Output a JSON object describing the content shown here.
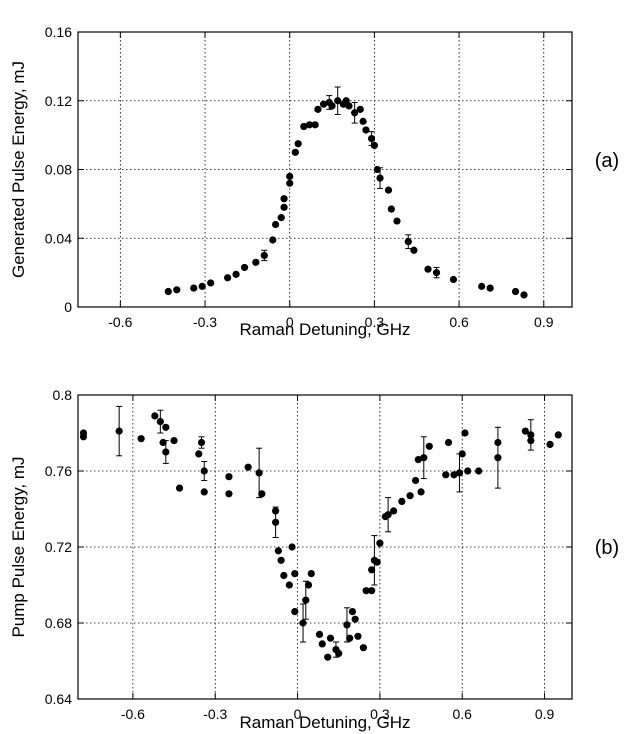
{
  "chart_data": [
    {
      "id": "a",
      "type": "scatter",
      "panel_label": "(a)",
      "xlabel": "Raman Detuning, GHz",
      "ylabel": "Generated Pulse Energy, mJ",
      "xlim": [
        -0.75,
        1.0
      ],
      "ylim": [
        0,
        0.16
      ],
      "xticks": [
        -0.6,
        -0.3,
        0,
        0.3,
        0.6,
        0.9
      ],
      "xtick_labels": [
        "-0.6",
        "-0.3",
        "0",
        "0.3",
        "0.6",
        "0.9"
      ],
      "yticks": [
        0,
        0.04,
        0.08,
        0.12,
        0.16
      ],
      "ytick_labels": [
        "0",
        "0.04",
        "0.08",
        "0.12",
        "0.16"
      ],
      "grid": true,
      "series": [
        {
          "points": [
            {
              "x": -0.43,
              "y": 0.009
            },
            {
              "x": -0.4,
              "y": 0.01
            },
            {
              "x": -0.34,
              "y": 0.011
            },
            {
              "x": -0.31,
              "y": 0.012
            },
            {
              "x": -0.28,
              "y": 0.014
            },
            {
              "x": -0.22,
              "y": 0.017
            },
            {
              "x": -0.19,
              "y": 0.019
            },
            {
              "x": -0.16,
              "y": 0.023
            },
            {
              "x": -0.12,
              "y": 0.026
            },
            {
              "x": -0.09,
              "y": 0.03,
              "err": 0.003
            },
            {
              "x": -0.06,
              "y": 0.039
            },
            {
              "x": -0.05,
              "y": 0.048
            },
            {
              "x": -0.03,
              "y": 0.052
            },
            {
              "x": -0.02,
              "y": 0.058
            },
            {
              "x": -0.02,
              "y": 0.063
            },
            {
              "x": 0.0,
              "y": 0.072
            },
            {
              "x": 0.0,
              "y": 0.076
            },
            {
              "x": 0.02,
              "y": 0.09
            },
            {
              "x": 0.03,
              "y": 0.095
            },
            {
              "x": 0.05,
              "y": 0.105
            },
            {
              "x": 0.07,
              "y": 0.106
            },
            {
              "x": 0.09,
              "y": 0.106
            },
            {
              "x": 0.1,
              "y": 0.115
            },
            {
              "x": 0.12,
              "y": 0.118
            },
            {
              "x": 0.14,
              "y": 0.119,
              "err": 0.004
            },
            {
              "x": 0.15,
              "y": 0.117
            },
            {
              "x": 0.17,
              "y": 0.12,
              "err": 0.008
            },
            {
              "x": 0.19,
              "y": 0.118
            },
            {
              "x": 0.2,
              "y": 0.12
            },
            {
              "x": 0.21,
              "y": 0.117
            },
            {
              "x": 0.23,
              "y": 0.113,
              "err": 0.006
            },
            {
              "x": 0.25,
              "y": 0.115
            },
            {
              "x": 0.26,
              "y": 0.108
            },
            {
              "x": 0.27,
              "y": 0.103
            },
            {
              "x": 0.29,
              "y": 0.098,
              "err": 0.004
            },
            {
              "x": 0.3,
              "y": 0.094
            },
            {
              "x": 0.31,
              "y": 0.08
            },
            {
              "x": 0.32,
              "y": 0.075,
              "err": 0.006
            },
            {
              "x": 0.35,
              "y": 0.068
            },
            {
              "x": 0.36,
              "y": 0.057
            },
            {
              "x": 0.38,
              "y": 0.05
            },
            {
              "x": 0.42,
              "y": 0.038,
              "err": 0.004
            },
            {
              "x": 0.44,
              "y": 0.033
            },
            {
              "x": 0.49,
              "y": 0.022
            },
            {
              "x": 0.52,
              "y": 0.02,
              "err": 0.003
            },
            {
              "x": 0.58,
              "y": 0.016
            },
            {
              "x": 0.68,
              "y": 0.012
            },
            {
              "x": 0.71,
              "y": 0.011
            },
            {
              "x": 0.8,
              "y": 0.009
            },
            {
              "x": 0.83,
              "y": 0.007
            }
          ]
        }
      ]
    },
    {
      "id": "b",
      "type": "scatter",
      "panel_label": "(b)",
      "xlabel": "Raman Detuning, GHz",
      "ylabel": "Pump Pulse Energy, mJ",
      "xlim": [
        -0.8,
        1.0
      ],
      "ylim": [
        0.64,
        0.8
      ],
      "xticks": [
        -0.6,
        -0.3,
        0,
        0.3,
        0.6,
        0.9
      ],
      "xtick_labels": [
        "-0.6",
        "-0.3",
        "0",
        "0.3",
        "0.6",
        "0.9"
      ],
      "yticks": [
        0.64,
        0.68,
        0.72,
        0.76,
        0.8
      ],
      "ytick_labels": [
        "0.64",
        "0.68",
        "0.72",
        "0.76",
        "0.8"
      ],
      "grid": true,
      "series": [
        {
          "points": [
            {
              "x": -0.78,
              "y": 0.778
            },
            {
              "x": -0.78,
              "y": 0.78
            },
            {
              "x": -0.65,
              "y": 0.781,
              "err": 0.013
            },
            {
              "x": -0.57,
              "y": 0.777
            },
            {
              "x": -0.52,
              "y": 0.789
            },
            {
              "x": -0.5,
              "y": 0.786,
              "err": 0.006
            },
            {
              "x": -0.49,
              "y": 0.775
            },
            {
              "x": -0.48,
              "y": 0.77,
              "err": 0.006
            },
            {
              "x": -0.48,
              "y": 0.783
            },
            {
              "x": -0.45,
              "y": 0.776
            },
            {
              "x": -0.43,
              "y": 0.751
            },
            {
              "x": -0.36,
              "y": 0.769
            },
            {
              "x": -0.35,
              "y": 0.775,
              "err": 0.003
            },
            {
              "x": -0.34,
              "y": 0.76,
              "err": 0.005
            },
            {
              "x": -0.34,
              "y": 0.749
            },
            {
              "x": -0.25,
              "y": 0.757
            },
            {
              "x": -0.25,
              "y": 0.748
            },
            {
              "x": -0.18,
              "y": 0.762
            },
            {
              "x": -0.14,
              "y": 0.759,
              "err": 0.013
            },
            {
              "x": -0.13,
              "y": 0.748
            },
            {
              "x": -0.08,
              "y": 0.739
            },
            {
              "x": -0.08,
              "y": 0.733,
              "err": 0.008
            },
            {
              "x": -0.07,
              "y": 0.718
            },
            {
              "x": -0.06,
              "y": 0.713
            },
            {
              "x": -0.05,
              "y": 0.705
            },
            {
              "x": -0.03,
              "y": 0.7
            },
            {
              "x": -0.02,
              "y": 0.72
            },
            {
              "x": -0.01,
              "y": 0.706
            },
            {
              "x": -0.01,
              "y": 0.686
            },
            {
              "x": 0.02,
              "y": 0.68,
              "err": 0.01
            },
            {
              "x": 0.03,
              "y": 0.692,
              "err": 0.01
            },
            {
              "x": 0.04,
              "y": 0.7
            },
            {
              "x": 0.05,
              "y": 0.706
            },
            {
              "x": 0.08,
              "y": 0.674
            },
            {
              "x": 0.09,
              "y": 0.669
            },
            {
              "x": 0.11,
              "y": 0.662
            },
            {
              "x": 0.12,
              "y": 0.672
            },
            {
              "x": 0.14,
              "y": 0.666,
              "err": 0.004
            },
            {
              "x": 0.15,
              "y": 0.664
            },
            {
              "x": 0.18,
              "y": 0.679,
              "err": 0.009
            },
            {
              "x": 0.19,
              "y": 0.672
            },
            {
              "x": 0.2,
              "y": 0.686
            },
            {
              "x": 0.21,
              "y": 0.682
            },
            {
              "x": 0.22,
              "y": 0.673
            },
            {
              "x": 0.24,
              "y": 0.667
            },
            {
              "x": 0.25,
              "y": 0.697
            },
            {
              "x": 0.27,
              "y": 0.697
            },
            {
              "x": 0.27,
              "y": 0.708
            },
            {
              "x": 0.28,
              "y": 0.713,
              "err": 0.013
            },
            {
              "x": 0.29,
              "y": 0.712
            },
            {
              "x": 0.3,
              "y": 0.722
            },
            {
              "x": 0.32,
              "y": 0.736
            },
            {
              "x": 0.33,
              "y": 0.737,
              "err": 0.009
            },
            {
              "x": 0.35,
              "y": 0.739
            },
            {
              "x": 0.38,
              "y": 0.744
            },
            {
              "x": 0.41,
              "y": 0.747
            },
            {
              "x": 0.43,
              "y": 0.755
            },
            {
              "x": 0.44,
              "y": 0.766
            },
            {
              "x": 0.45,
              "y": 0.749
            },
            {
              "x": 0.46,
              "y": 0.767,
              "err": 0.011
            },
            {
              "x": 0.48,
              "y": 0.773
            },
            {
              "x": 0.54,
              "y": 0.758
            },
            {
              "x": 0.55,
              "y": 0.775
            },
            {
              "x": 0.57,
              "y": 0.758
            },
            {
              "x": 0.59,
              "y": 0.759,
              "err": 0.01
            },
            {
              "x": 0.6,
              "y": 0.769
            },
            {
              "x": 0.61,
              "y": 0.78
            },
            {
              "x": 0.62,
              "y": 0.76
            },
            {
              "x": 0.66,
              "y": 0.76
            },
            {
              "x": 0.73,
              "y": 0.767,
              "err": 0.016
            },
            {
              "x": 0.73,
              "y": 0.775
            },
            {
              "x": 0.83,
              "y": 0.781
            },
            {
              "x": 0.85,
              "y": 0.779,
              "err": 0.008
            },
            {
              "x": 0.85,
              "y": 0.776
            },
            {
              "x": 0.92,
              "y": 0.774
            },
            {
              "x": 0.95,
              "y": 0.779
            }
          ]
        }
      ]
    }
  ]
}
